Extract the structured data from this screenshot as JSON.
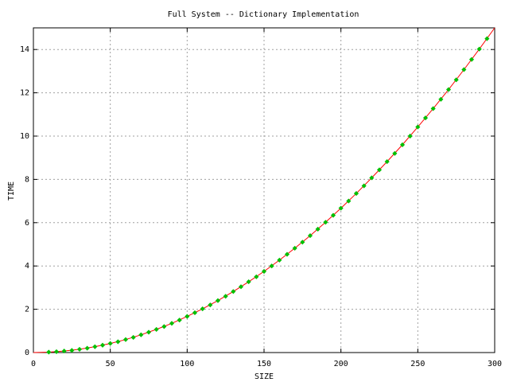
{
  "chart_data": {
    "type": "line",
    "title": "Full System -- Dictionary Implementation",
    "xlabel": "SIZE",
    "ylabel": "TIME",
    "xlim": [
      0,
      300
    ],
    "ylim": [
      0,
      15
    ],
    "xticks": [
      0,
      50,
      100,
      150,
      200,
      250,
      300
    ],
    "yticks": [
      0,
      2,
      4,
      6,
      8,
      10,
      12,
      14
    ],
    "grid": true,
    "series": [
      {
        "style": "line",
        "color": "#ff0000",
        "x": [
          0,
          10,
          20,
          30,
          40,
          50,
          60,
          70,
          80,
          90,
          100,
          110,
          120,
          130,
          140,
          150,
          160,
          170,
          180,
          190,
          200,
          210,
          220,
          230,
          240,
          250,
          260,
          270,
          280,
          290,
          300
        ],
        "values": [
          0,
          0.02,
          0.07,
          0.15,
          0.27,
          0.42,
          0.6,
          0.82,
          1.07,
          1.35,
          1.67,
          2.02,
          2.4,
          2.82,
          3.27,
          3.75,
          4.27,
          4.82,
          5.4,
          6.02,
          6.67,
          7.35,
          8.07,
          8.82,
          9.6,
          10.42,
          11.27,
          12.15,
          13.07,
          14.02,
          15.0
        ]
      },
      {
        "style": "points",
        "color": "#00c000",
        "x": [
          10,
          15,
          20,
          25,
          30,
          35,
          40,
          45,
          50,
          55,
          60,
          65,
          70,
          75,
          80,
          85,
          90,
          95,
          100,
          105,
          110,
          115,
          120,
          125,
          130,
          135,
          140,
          145,
          150,
          155,
          160,
          165,
          170,
          175,
          180,
          185,
          190,
          195,
          200,
          205,
          210,
          215,
          220,
          225,
          230,
          235,
          240,
          245,
          250,
          255,
          260,
          265,
          270,
          275,
          280,
          285,
          290,
          295
        ],
        "values": [
          0.02,
          0.04,
          0.07,
          0.1,
          0.15,
          0.2,
          0.27,
          0.34,
          0.42,
          0.5,
          0.6,
          0.7,
          0.82,
          0.94,
          1.07,
          1.2,
          1.35,
          1.5,
          1.67,
          1.84,
          2.02,
          2.2,
          2.4,
          2.6,
          2.82,
          3.04,
          3.27,
          3.5,
          3.75,
          4.0,
          4.27,
          4.54,
          4.82,
          5.1,
          5.4,
          5.7,
          6.02,
          6.34,
          6.67,
          7.0,
          7.35,
          7.7,
          8.07,
          8.44,
          8.82,
          9.2,
          9.6,
          10.0,
          10.42,
          10.84,
          11.27,
          11.7,
          12.15,
          12.6,
          13.07,
          13.54,
          14.02,
          14.5
        ]
      }
    ]
  }
}
